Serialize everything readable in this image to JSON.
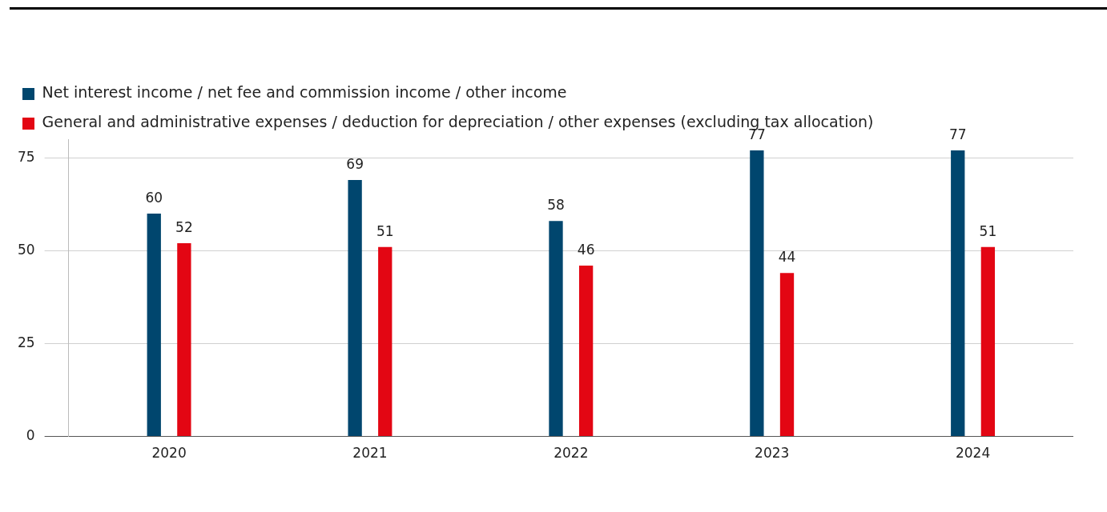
{
  "chart_data": {
    "type": "bar",
    "categories": [
      "2020",
      "2021",
      "2022",
      "2023",
      "2024"
    ],
    "series": [
      {
        "name": "Net interest income / net fee and commission income / other income",
        "color": "#00466e",
        "values": [
          60,
          69,
          58,
          77,
          77
        ]
      },
      {
        "name": "General and administrative expenses / deduction for depreciation / other expenses (excluding tax allocation)",
        "color": "#e30613",
        "values": [
          52,
          51,
          46,
          44,
          51
        ]
      }
    ],
    "ylim": [
      0,
      80
    ],
    "yticks": [
      0,
      25,
      50,
      75
    ],
    "grid": "y",
    "legend": "top left",
    "data_labels": true
  }
}
